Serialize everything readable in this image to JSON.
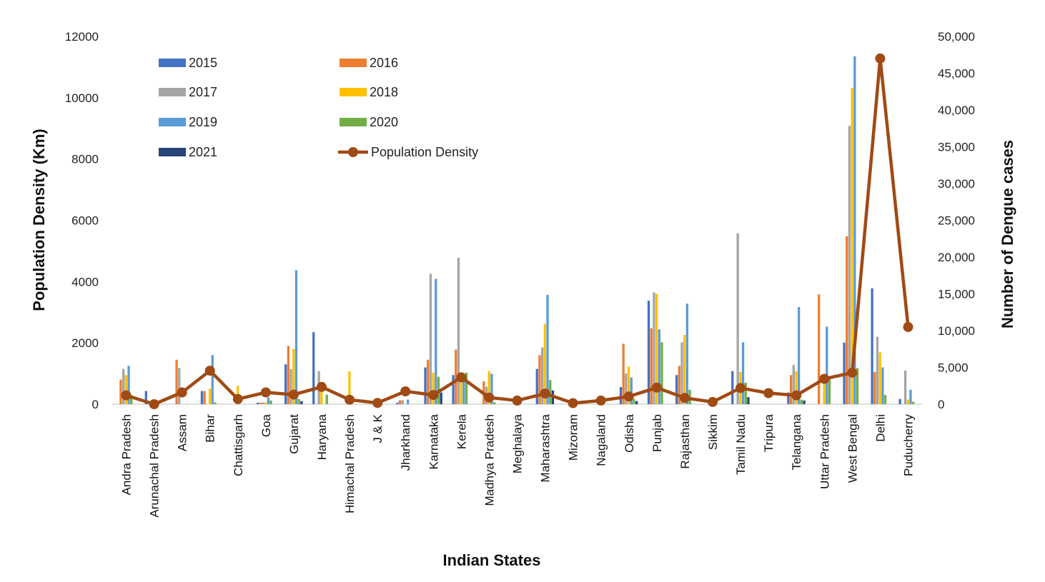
{
  "chart_data": {
    "type": "bar",
    "title": "",
    "xlabel": "Indian States",
    "ylabel": "Population Density (Km)",
    "y2label": "Number of Dengue cases",
    "ylim": [
      0,
      12000
    ],
    "y2lim": [
      0,
      50000
    ],
    "yticks": [
      "0",
      "2000",
      "4000",
      "6000",
      "8000",
      "10000",
      "12000"
    ],
    "y2ticks": [
      "0",
      "5,000",
      "10,000",
      "15,000",
      "20,000",
      "25,000",
      "30,000",
      "35,000",
      "40,000",
      "45,000",
      "50,000"
    ],
    "categories": [
      "Andra Pradesh",
      "Arunachal Pradesh",
      "Assam",
      "Bihar",
      "Chattisgarh",
      "Goa",
      "Gujarat",
      "Haryana",
      "Himachal Pradesh",
      "J & K",
      "Jharkhand",
      "Karnataka",
      "Kerela",
      "Madhya Pradesh",
      "Meghalaya",
      "Maharashtra",
      "Mizoram",
      "Nagaland",
      "Odisha",
      "Punjab",
      "Rajasthan",
      "Sikkim",
      "Tamil Nadu",
      "Tripura",
      "Telangana",
      "Uttar Pradesh",
      "West Bengal",
      "Delhi",
      "Puducherry"
    ],
    "series": [
      {
        "name": "2015",
        "color": "#4472C4",
        "values": [
          0,
          430,
          0,
          430,
          0,
          50,
          1300,
          2350,
          0,
          0,
          50,
          1200,
          950,
          0,
          0,
          1150,
          0,
          0,
          560,
          3380,
          950,
          0,
          1080,
          0,
          380,
          0,
          2010,
          3780,
          170
        ]
      },
      {
        "name": "2016",
        "color": "#ED7D31",
        "values": [
          800,
          0,
          1450,
          430,
          0,
          50,
          1900,
          0,
          0,
          0,
          130,
          1450,
          1780,
          750,
          0,
          1600,
          0,
          0,
          1970,
          2480,
          1250,
          0,
          0,
          0,
          950,
          3580,
          5480,
          1050,
          0
        ]
      },
      {
        "name": "2017",
        "color": "#A5A5A5",
        "values": [
          1150,
          0,
          1180,
          0,
          0,
          60,
          1150,
          1080,
          0,
          0,
          130,
          4250,
          4780,
          570,
          0,
          1850,
          0,
          0,
          1000,
          3650,
          2020,
          0,
          5580,
          0,
          1280,
          0,
          9080,
          2200,
          1100
        ]
      },
      {
        "name": "2018",
        "color": "#FFC000",
        "values": [
          950,
          0,
          0,
          500,
          600,
          60,
          1800,
          500,
          1070,
          0,
          0,
          1030,
          1000,
          1080,
          0,
          2620,
          0,
          0,
          1230,
          3600,
          2260,
          0,
          1050,
          0,
          1080,
          780,
          10320,
          1690,
          150
        ]
      },
      {
        "name": "2019",
        "color": "#5B9BD5",
        "values": [
          1250,
          0,
          0,
          1600,
          0,
          220,
          4370,
          0,
          0,
          0,
          150,
          4090,
          1000,
          990,
          0,
          3570,
          0,
          0,
          870,
          2440,
          3280,
          0,
          2020,
          0,
          3170,
          2530,
          11350,
          1200,
          470
        ]
      },
      {
        "name": "2020",
        "color": "#70AD47",
        "values": [
          300,
          0,
          0,
          60,
          0,
          120,
          170,
          310,
          0,
          0,
          0,
          890,
          1030,
          60,
          0,
          790,
          0,
          0,
          170,
          2020,
          470,
          0,
          700,
          0,
          150,
          860,
          1180,
          300,
          80
        ]
      },
      {
        "name": "2021",
        "color": "#264478",
        "values": [
          0,
          0,
          0,
          0,
          0,
          0,
          100,
          0,
          0,
          0,
          0,
          380,
          0,
          0,
          0,
          450,
          0,
          0,
          100,
          0,
          0,
          0,
          230,
          0,
          120,
          0,
          0,
          0,
          0
        ]
      }
    ],
    "line_series": {
      "name": "Population Density",
      "axis": "right",
      "color": "#A04A14",
      "values": [
        1200,
        0,
        1600,
        4550,
        700,
        1600,
        1300,
        2350,
        600,
        170,
        1750,
        1250,
        3650,
        900,
        500,
        1450,
        150,
        500,
        1050,
        2250,
        850,
        300,
        2200,
        1500,
        1200,
        3450,
        4280,
        47000,
        10500
      ]
    },
    "legend": [
      {
        "label": "2015",
        "kind": "bar",
        "color": "#4472C4"
      },
      {
        "label": "2016",
        "kind": "bar",
        "color": "#ED7D31"
      },
      {
        "label": "2017",
        "kind": "bar",
        "color": "#A5A5A5"
      },
      {
        "label": "2018",
        "kind": "bar",
        "color": "#FFC000"
      },
      {
        "label": "2019",
        "kind": "bar",
        "color": "#5B9BD5"
      },
      {
        "label": "2020",
        "kind": "bar",
        "color": "#70AD47"
      },
      {
        "label": "2021",
        "kind": "bar",
        "color": "#264478"
      },
      {
        "label": "Population Density",
        "kind": "line",
        "color": "#A04A14"
      }
    ],
    "legend_position": "top-left",
    "grid": false
  }
}
